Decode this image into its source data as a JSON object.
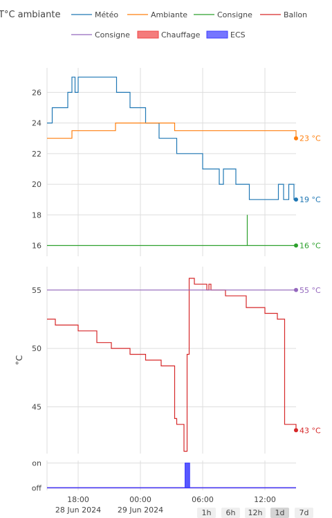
{
  "colors": {
    "meteo": "#1f77b4",
    "ambiante": "#ff7f0e",
    "consigne": "#2ca02c",
    "ballon": "#d62728",
    "consigne_ballon": "#9467bd",
    "chauffage": "#ef4444",
    "ecs": "#3b3bff",
    "grid": "#dddddd",
    "text": "#444444"
  },
  "chart_data": [
    {
      "type": "line",
      "title": "T°C ambiante",
      "x_unit": "hours since 15:00, 28 Jun 2024",
      "xlim": [
        0,
        24
      ],
      "ylim": [
        15.3,
        27.6
      ],
      "yticks": [
        16,
        18,
        20,
        22,
        24,
        26
      ],
      "grid": true,
      "legend_position": "top",
      "series": [
        {
          "name": "Météo",
          "color_key": "meteo",
          "end_label": "19 °C",
          "points": [
            [
              0,
              24
            ],
            [
              0.5,
              24
            ],
            [
              0.5,
              25
            ],
            [
              2,
              25
            ],
            [
              2,
              26
            ],
            [
              2.4,
              26
            ],
            [
              2.4,
              27
            ],
            [
              2.7,
              27
            ],
            [
              2.7,
              26
            ],
            [
              3,
              26
            ],
            [
              3,
              27
            ],
            [
              6.7,
              27
            ],
            [
              6.7,
              26
            ],
            [
              8,
              26
            ],
            [
              8,
              25
            ],
            [
              9.5,
              25
            ],
            [
              9.5,
              24
            ],
            [
              10.8,
              24
            ],
            [
              10.8,
              23
            ],
            [
              12.5,
              23
            ],
            [
              12.5,
              22
            ],
            [
              15,
              22
            ],
            [
              15,
              21
            ],
            [
              16.6,
              21
            ],
            [
              16.6,
              20
            ],
            [
              17,
              20
            ],
            [
              17,
              21
            ],
            [
              18.2,
              21
            ],
            [
              18.2,
              20
            ],
            [
              19.5,
              20
            ],
            [
              19.5,
              19
            ],
            [
              22.3,
              19
            ],
            [
              22.3,
              20
            ],
            [
              22.8,
              20
            ],
            [
              22.8,
              19
            ],
            [
              23.3,
              19
            ],
            [
              23.3,
              20
            ],
            [
              23.8,
              20
            ],
            [
              23.8,
              19
            ],
            [
              24,
              19
            ]
          ]
        },
        {
          "name": "Ambiante",
          "color_key": "ambiante",
          "end_label": "23 °C",
          "points": [
            [
              0,
              23
            ],
            [
              2.4,
              23
            ],
            [
              2.4,
              23.5
            ],
            [
              6.6,
              23.5
            ],
            [
              6.6,
              24
            ],
            [
              12.3,
              24
            ],
            [
              12.3,
              23.5
            ],
            [
              24,
              23.5
            ],
            [
              24,
              23
            ]
          ]
        },
        {
          "name": "Consigne",
          "color_key": "consigne",
          "end_label": "16 °C",
          "points": [
            [
              0,
              16
            ],
            [
              19.3,
              16
            ],
            [
              19.3,
              18
            ],
            [
              19.3,
              16
            ],
            [
              24,
              16
            ]
          ]
        }
      ]
    },
    {
      "type": "line",
      "ylabel": "°C",
      "xlim": [
        0,
        24
      ],
      "ylim": [
        41,
        57
      ],
      "yticks": [
        45,
        50,
        55
      ],
      "grid": true,
      "series": [
        {
          "name": "Ballon",
          "color_key": "ballon",
          "end_label": "43 °C",
          "points": [
            [
              0,
              52.5
            ],
            [
              0.8,
              52.5
            ],
            [
              0.8,
              52
            ],
            [
              3,
              52
            ],
            [
              3,
              51.5
            ],
            [
              4.8,
              51.5
            ],
            [
              4.8,
              50.5
            ],
            [
              6.2,
              50.5
            ],
            [
              6.2,
              50
            ],
            [
              8,
              50
            ],
            [
              8,
              49.5
            ],
            [
              9.5,
              49.5
            ],
            [
              9.5,
              49
            ],
            [
              11,
              49
            ],
            [
              11,
              48.5
            ],
            [
              12.3,
              48.5
            ],
            [
              12.3,
              44
            ],
            [
              12.5,
              44
            ],
            [
              12.5,
              43.5
            ],
            [
              13.2,
              43.5
            ],
            [
              13.2,
              41.2
            ],
            [
              13.5,
              41.2
            ],
            [
              13.5,
              49.5
            ],
            [
              13.7,
              49.5
            ],
            [
              13.7,
              56
            ],
            [
              14.2,
              56
            ],
            [
              14.2,
              55.5
            ],
            [
              15.4,
              55.5
            ],
            [
              15.4,
              55
            ],
            [
              15.6,
              55
            ],
            [
              15.6,
              55.5
            ],
            [
              15.8,
              55.5
            ],
            [
              15.8,
              55
            ],
            [
              17.2,
              55
            ],
            [
              17.2,
              54.5
            ],
            [
              19.2,
              54.5
            ],
            [
              19.2,
              53.5
            ],
            [
              21,
              53.5
            ],
            [
              21,
              53
            ],
            [
              22.2,
              53
            ],
            [
              22.2,
              52.5
            ],
            [
              22.9,
              52.5
            ],
            [
              22.9,
              43.5
            ],
            [
              24,
              43.5
            ],
            [
              24,
              43
            ]
          ]
        },
        {
          "name": "Consigne",
          "color_key": "consigne_ballon",
          "end_label": "55 °C",
          "points": [
            [
              0,
              55
            ],
            [
              24,
              55
            ]
          ]
        }
      ]
    },
    {
      "type": "area",
      "xlim": [
        0,
        24
      ],
      "ylim": [
        -0.1,
        1.1
      ],
      "yticks": [
        0,
        1
      ],
      "ytick_labels": [
        "off",
        "on"
      ],
      "grid": true,
      "xticks": [
        3,
        9,
        15,
        21
      ],
      "xtick_labels": [
        "18:00",
        "00:00",
        "06:00",
        "12:00"
      ],
      "xtick_sublabels": [
        "28 Jun 2024",
        "29 Jun 2024",
        "",
        ""
      ],
      "series": [
        {
          "name": "Chauffage",
          "color_key": "chauffage",
          "segments": []
        },
        {
          "name": "ECS",
          "color_key": "ecs",
          "segments": [
            [
              13.3,
              13.75
            ]
          ]
        }
      ]
    }
  ],
  "legend": [
    {
      "label": "Météo",
      "color_key": "meteo",
      "kind": "line"
    },
    {
      "label": "Ambiante",
      "color_key": "ambiante",
      "kind": "line"
    },
    {
      "label": "Consigne",
      "color_key": "consigne",
      "kind": "line"
    },
    {
      "label": "Ballon",
      "color_key": "ballon",
      "kind": "line"
    },
    {
      "label": "Consigne",
      "color_key": "consigne_ballon",
      "kind": "line"
    },
    {
      "label": "Chauffage",
      "color_key": "chauffage",
      "kind": "box"
    },
    {
      "label": "ECS",
      "color_key": "ecs",
      "kind": "box"
    }
  ],
  "range_buttons": [
    "1h",
    "6h",
    "12h",
    "1d",
    "7d"
  ],
  "active_range": "1d"
}
